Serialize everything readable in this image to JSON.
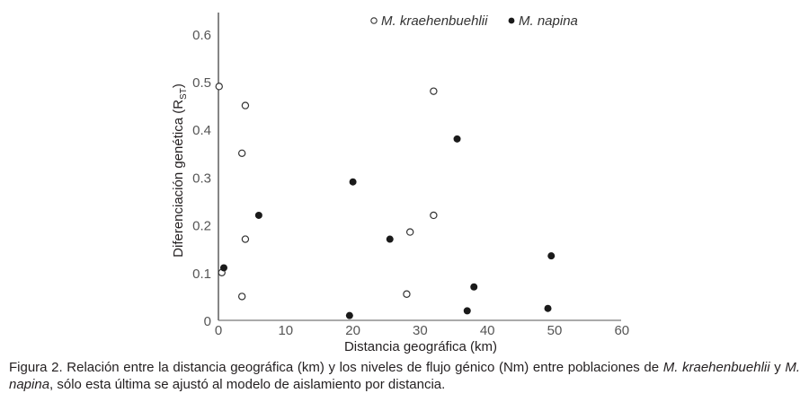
{
  "chart_data": {
    "type": "scatter",
    "title": "",
    "xlabel": "Distancia geográfica (km)",
    "ylabel": "Diferenciación genética (R",
    "ylabel_subscript": "ST",
    "ylabel_suffix": ")",
    "xlim": [
      0,
      60
    ],
    "ylim": [
      0,
      0.65
    ],
    "x_ticks": [
      "0",
      "10",
      "20",
      "30",
      "40",
      "50",
      "60"
    ],
    "y_ticks": [
      "0",
      "0.1",
      "0.2",
      "0.3",
      "0.4",
      "0.5",
      "0.6"
    ],
    "grid": false,
    "legend_position": "top",
    "series": [
      {
        "name": "M. kraehenbuehlii",
        "marker": "open-circle",
        "points": [
          {
            "x": 0.1,
            "y": 0.49
          },
          {
            "x": 4.0,
            "y": 0.45
          },
          {
            "x": 3.5,
            "y": 0.35
          },
          {
            "x": 4.0,
            "y": 0.17
          },
          {
            "x": 0.5,
            "y": 0.1
          },
          {
            "x": 3.5,
            "y": 0.05
          },
          {
            "x": 32.0,
            "y": 0.48
          },
          {
            "x": 32.0,
            "y": 0.22
          },
          {
            "x": 28.5,
            "y": 0.185
          },
          {
            "x": 28.0,
            "y": 0.055
          }
        ]
      },
      {
        "name": "M. napina",
        "marker": "filled-circle",
        "points": [
          {
            "x": 0.8,
            "y": 0.11
          },
          {
            "x": 6.0,
            "y": 0.22
          },
          {
            "x": 20.0,
            "y": 0.29
          },
          {
            "x": 35.5,
            "y": 0.38
          },
          {
            "x": 25.5,
            "y": 0.17
          },
          {
            "x": 19.5,
            "y": 0.01
          },
          {
            "x": 38.0,
            "y": 0.07
          },
          {
            "x": 37.0,
            "y": 0.02
          },
          {
            "x": 49.5,
            "y": 0.135
          },
          {
            "x": 49.0,
            "y": 0.025
          }
        ]
      }
    ]
  },
  "legend": {
    "items": [
      {
        "symbol": "open-circle-icon",
        "label": "M. kraehenbuehlii"
      },
      {
        "symbol": "filled-circle-icon",
        "label": "M. napina"
      }
    ]
  },
  "caption": {
    "prefix": "Figura 2. Relación entre la distancia geográfica (km) y los niveles de flujo génico (Nm) entre poblaciones de ",
    "species1": "M. kraehenbuehlii",
    "connector": " y ",
    "species2": "M. napina",
    "suffix": ", sólo esta última se ajustó al modelo de aislamiento por distancia."
  }
}
